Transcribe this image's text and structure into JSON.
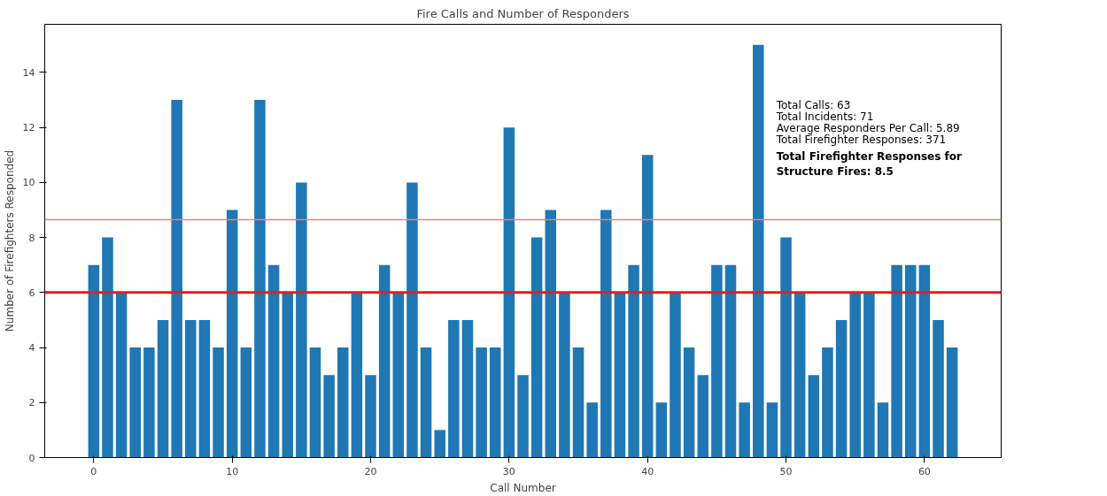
{
  "chart_data": {
    "type": "bar",
    "title": "Fire Calls and Number of Responders",
    "xlabel": "Call Number",
    "ylabel": "Number of Firefighters Responded",
    "x": [
      0,
      1,
      2,
      3,
      4,
      5,
      6,
      7,
      8,
      9,
      10,
      11,
      12,
      13,
      14,
      15,
      16,
      17,
      18,
      19,
      20,
      21,
      22,
      23,
      24,
      25,
      26,
      27,
      28,
      29,
      30,
      31,
      32,
      33,
      34,
      35,
      36,
      37,
      38,
      39,
      40,
      41,
      42,
      43,
      44,
      45,
      46,
      47,
      48,
      49,
      50,
      51,
      52,
      53,
      54,
      55,
      56,
      57,
      58,
      59,
      60,
      61,
      62
    ],
    "values": [
      7,
      8,
      6,
      4,
      4,
      5,
      13,
      5,
      5,
      4,
      9,
      4,
      13,
      7,
      6,
      10,
      4,
      3,
      4,
      6,
      3,
      7,
      6,
      10,
      4,
      1,
      5,
      5,
      4,
      4,
      12,
      3,
      8,
      9,
      6,
      4,
      2,
      9,
      6,
      7,
      11,
      2,
      6,
      4,
      3,
      7,
      7,
      2,
      15,
      2,
      8,
      6,
      3,
      4,
      5,
      6,
      6,
      2,
      7,
      7,
      7,
      5,
      4
    ],
    "color": "#1f77b4",
    "xlim": [
      -3.54,
      65.54
    ],
    "ylim": [
      0,
      15.75
    ],
    "xticks": [
      0,
      10,
      20,
      30,
      40,
      50,
      60
    ],
    "yticks": [
      0,
      2,
      4,
      6,
      8,
      10,
      12,
      14
    ],
    "ref_lines": [
      {
        "axis": "y",
        "value": 6,
        "color": "#e02020"
      },
      {
        "axis": "y",
        "value": 8.65,
        "color": "#f08070"
      }
    ],
    "annotations": [
      "Total Calls: 63",
      "Total Incidents: 71",
      "Average Responders Per Call: 5.89",
      "Total Firefighter Responses: 371",
      "Total Firefighter Responses for Structure Fires: 8.5"
    ],
    "grid": false
  }
}
